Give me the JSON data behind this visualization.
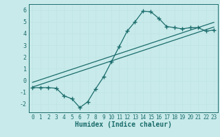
{
  "title": "",
  "xlabel": "Humidex (Indice chaleur)",
  "ylabel": "",
  "bg_color": "#c8eaea",
  "grid_color": "#c0e4e4",
  "line_color": "#1a6b6b",
  "xlim": [
    -0.5,
    23.5
  ],
  "ylim": [
    -2.7,
    6.5
  ],
  "xticks": [
    0,
    1,
    2,
    3,
    4,
    5,
    6,
    7,
    8,
    9,
    10,
    11,
    12,
    13,
    14,
    15,
    16,
    17,
    18,
    19,
    20,
    21,
    22,
    23
  ],
  "yticks": [
    -2,
    -1,
    0,
    1,
    2,
    3,
    4,
    5,
    6
  ],
  "data_x": [
    0,
    1,
    2,
    3,
    4,
    5,
    6,
    7,
    8,
    9,
    10,
    11,
    12,
    13,
    14,
    15,
    16,
    17,
    18,
    19,
    20,
    21,
    22,
    23
  ],
  "data_y": [
    -0.6,
    -0.6,
    -0.6,
    -0.65,
    -1.3,
    -1.55,
    -2.3,
    -1.8,
    -0.7,
    0.3,
    1.6,
    2.9,
    4.2,
    5.0,
    5.9,
    5.85,
    5.3,
    4.6,
    4.5,
    4.4,
    4.5,
    4.5,
    4.2,
    4.3
  ],
  "line1_x": [
    0,
    23
  ],
  "line1_y": [
    -0.55,
    4.55
  ],
  "line2_x": [
    0,
    23
  ],
  "line2_y": [
    -0.15,
    4.95
  ],
  "tick_fontsize": 5.5,
  "label_fontsize": 7
}
